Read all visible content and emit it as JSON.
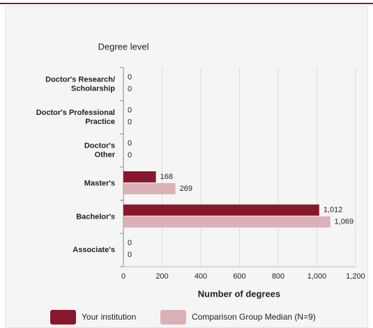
{
  "chart_data": {
    "type": "hbar",
    "title": "Degree level",
    "categories": [
      "Doctor's Research/\nScholarship",
      "Doctor's Professional\nPractice",
      "Doctor's\nOther",
      "Master's",
      "Bachelor's",
      "Associate's"
    ],
    "series": [
      {
        "name": "Your institution",
        "color": "#87172d",
        "values": [
          0,
          0,
          0,
          168,
          1012,
          0
        ],
        "value_labels": [
          "0",
          "0",
          "0",
          "168",
          "1,012",
          "0"
        ]
      },
      {
        "name": "Comparison Group Median (N=9)",
        "color": "#dbb0b6",
        "values": [
          0,
          0,
          0,
          269,
          1069,
          0
        ],
        "value_labels": [
          "0",
          "0",
          "0",
          "269",
          "1,069",
          "0"
        ]
      }
    ],
    "xlabel": "Number of degrees",
    "xlim": [
      0,
      1200
    ],
    "xticks": [
      0,
      200,
      400,
      600,
      800,
      {
        "value": 1000,
        "label": "1,000"
      },
      {
        "value": 1200,
        "label": "1,200"
      }
    ],
    "grid": true
  }
}
